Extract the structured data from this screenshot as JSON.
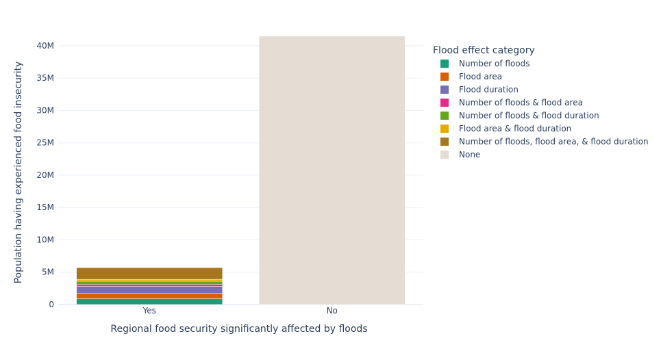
{
  "chart_data": {
    "type": "bar",
    "barmode": "stack",
    "xlabel": "Regional food security significantly affected by floods",
    "ylabel": "Population having experienced food insecurity",
    "categories": [
      "Yes",
      "No"
    ],
    "ylim": [
      0,
      42000000
    ],
    "yticks": [
      0,
      5000000,
      10000000,
      15000000,
      20000000,
      25000000,
      30000000,
      35000000,
      40000000
    ],
    "ytick_labels": [
      "0",
      "5M",
      "10M",
      "15M",
      "20M",
      "25M",
      "30M",
      "35M",
      "40M"
    ],
    "grid": true,
    "legend": {
      "title": "Flood effect category",
      "placement": "right"
    },
    "series": [
      {
        "name": "Number of floods",
        "color": "#1b9e77",
        "values": [
          900000,
          0
        ]
      },
      {
        "name": "Flood area",
        "color": "#d95f02",
        "values": [
          850000,
          0
        ]
      },
      {
        "name": "Flood duration",
        "color": "#7570b3",
        "values": [
          1050000,
          0
        ]
      },
      {
        "name": "Number of floods & flood area",
        "color": "#e7298a",
        "values": [
          300000,
          0
        ]
      },
      {
        "name": "Number of floods & flood duration",
        "color": "#66a61e",
        "values": [
          500000,
          0
        ]
      },
      {
        "name": "Flood area & flood duration",
        "color": "#e6ab02",
        "values": [
          300000,
          0
        ]
      },
      {
        "name": "Number of floods, flood area, & flood duration",
        "color": "#a6761d",
        "values": [
          1800000,
          0
        ]
      },
      {
        "name": "None",
        "color": "#e5ddd4",
        "values": [
          0,
          41500000
        ]
      }
    ]
  }
}
